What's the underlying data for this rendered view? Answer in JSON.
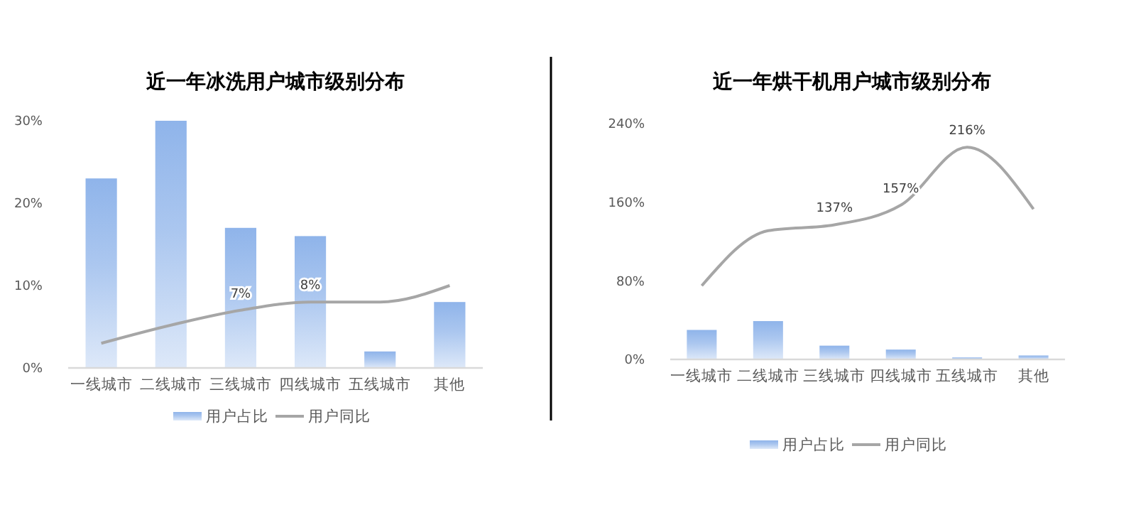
{
  "chart_data": [
    {
      "type": "bar",
      "title": "近一年冰洗用户城市级别分布",
      "categories": [
        "一线城市",
        "二线城市",
        "三线城市",
        "四线城市",
        "五线城市",
        "其他"
      ],
      "series": [
        {
          "name": "用户占比",
          "color": "#8fb4ea",
          "values": [
            23,
            30,
            17,
            16,
            2,
            8
          ]
        },
        {
          "name": "用户同比",
          "type": "line",
          "color": "#a6a6a6",
          "values": [
            3,
            5.2,
            7,
            8,
            8,
            10
          ],
          "value_labels": [
            null,
            null,
            "7%",
            "8%",
            null,
            null
          ]
        }
      ],
      "ylim": [
        0,
        30
      ],
      "yticks": [
        {
          "value": 0,
          "label": "0%"
        },
        {
          "value": 10,
          "label": "10%"
        },
        {
          "value": 20,
          "label": "20%"
        },
        {
          "value": 30,
          "label": "30%"
        }
      ],
      "grid": false,
      "legend": "bottom",
      "marker": "none",
      "line_style": "solid"
    },
    {
      "type": "bar",
      "title": "近一年烘干机用户城市级别分布",
      "categories": [
        "一线城市",
        "二线城市",
        "三线城市",
        "四线城市",
        "五线城市",
        "其他"
      ],
      "series": [
        {
          "name": "用户占比",
          "color": "#8fb4ea",
          "values": [
            30,
            39,
            14,
            10,
            2,
            4
          ]
        },
        {
          "name": "用户同比",
          "type": "line",
          "color": "#a6a6a6",
          "values": [
            75,
            131,
            137,
            157,
            216,
            153
          ],
          "value_labels": [
            null,
            null,
            "137%",
            "157%",
            "216%",
            null
          ]
        }
      ],
      "ylim": [
        0,
        240
      ],
      "yticks": [
        {
          "value": 0,
          "label": "0%"
        },
        {
          "value": 80,
          "label": "80%"
        },
        {
          "value": 160,
          "label": "160%"
        },
        {
          "value": 240,
          "label": "240%"
        }
      ],
      "grid": false,
      "legend": "bottom",
      "marker": "none",
      "line_style": "solid"
    }
  ]
}
